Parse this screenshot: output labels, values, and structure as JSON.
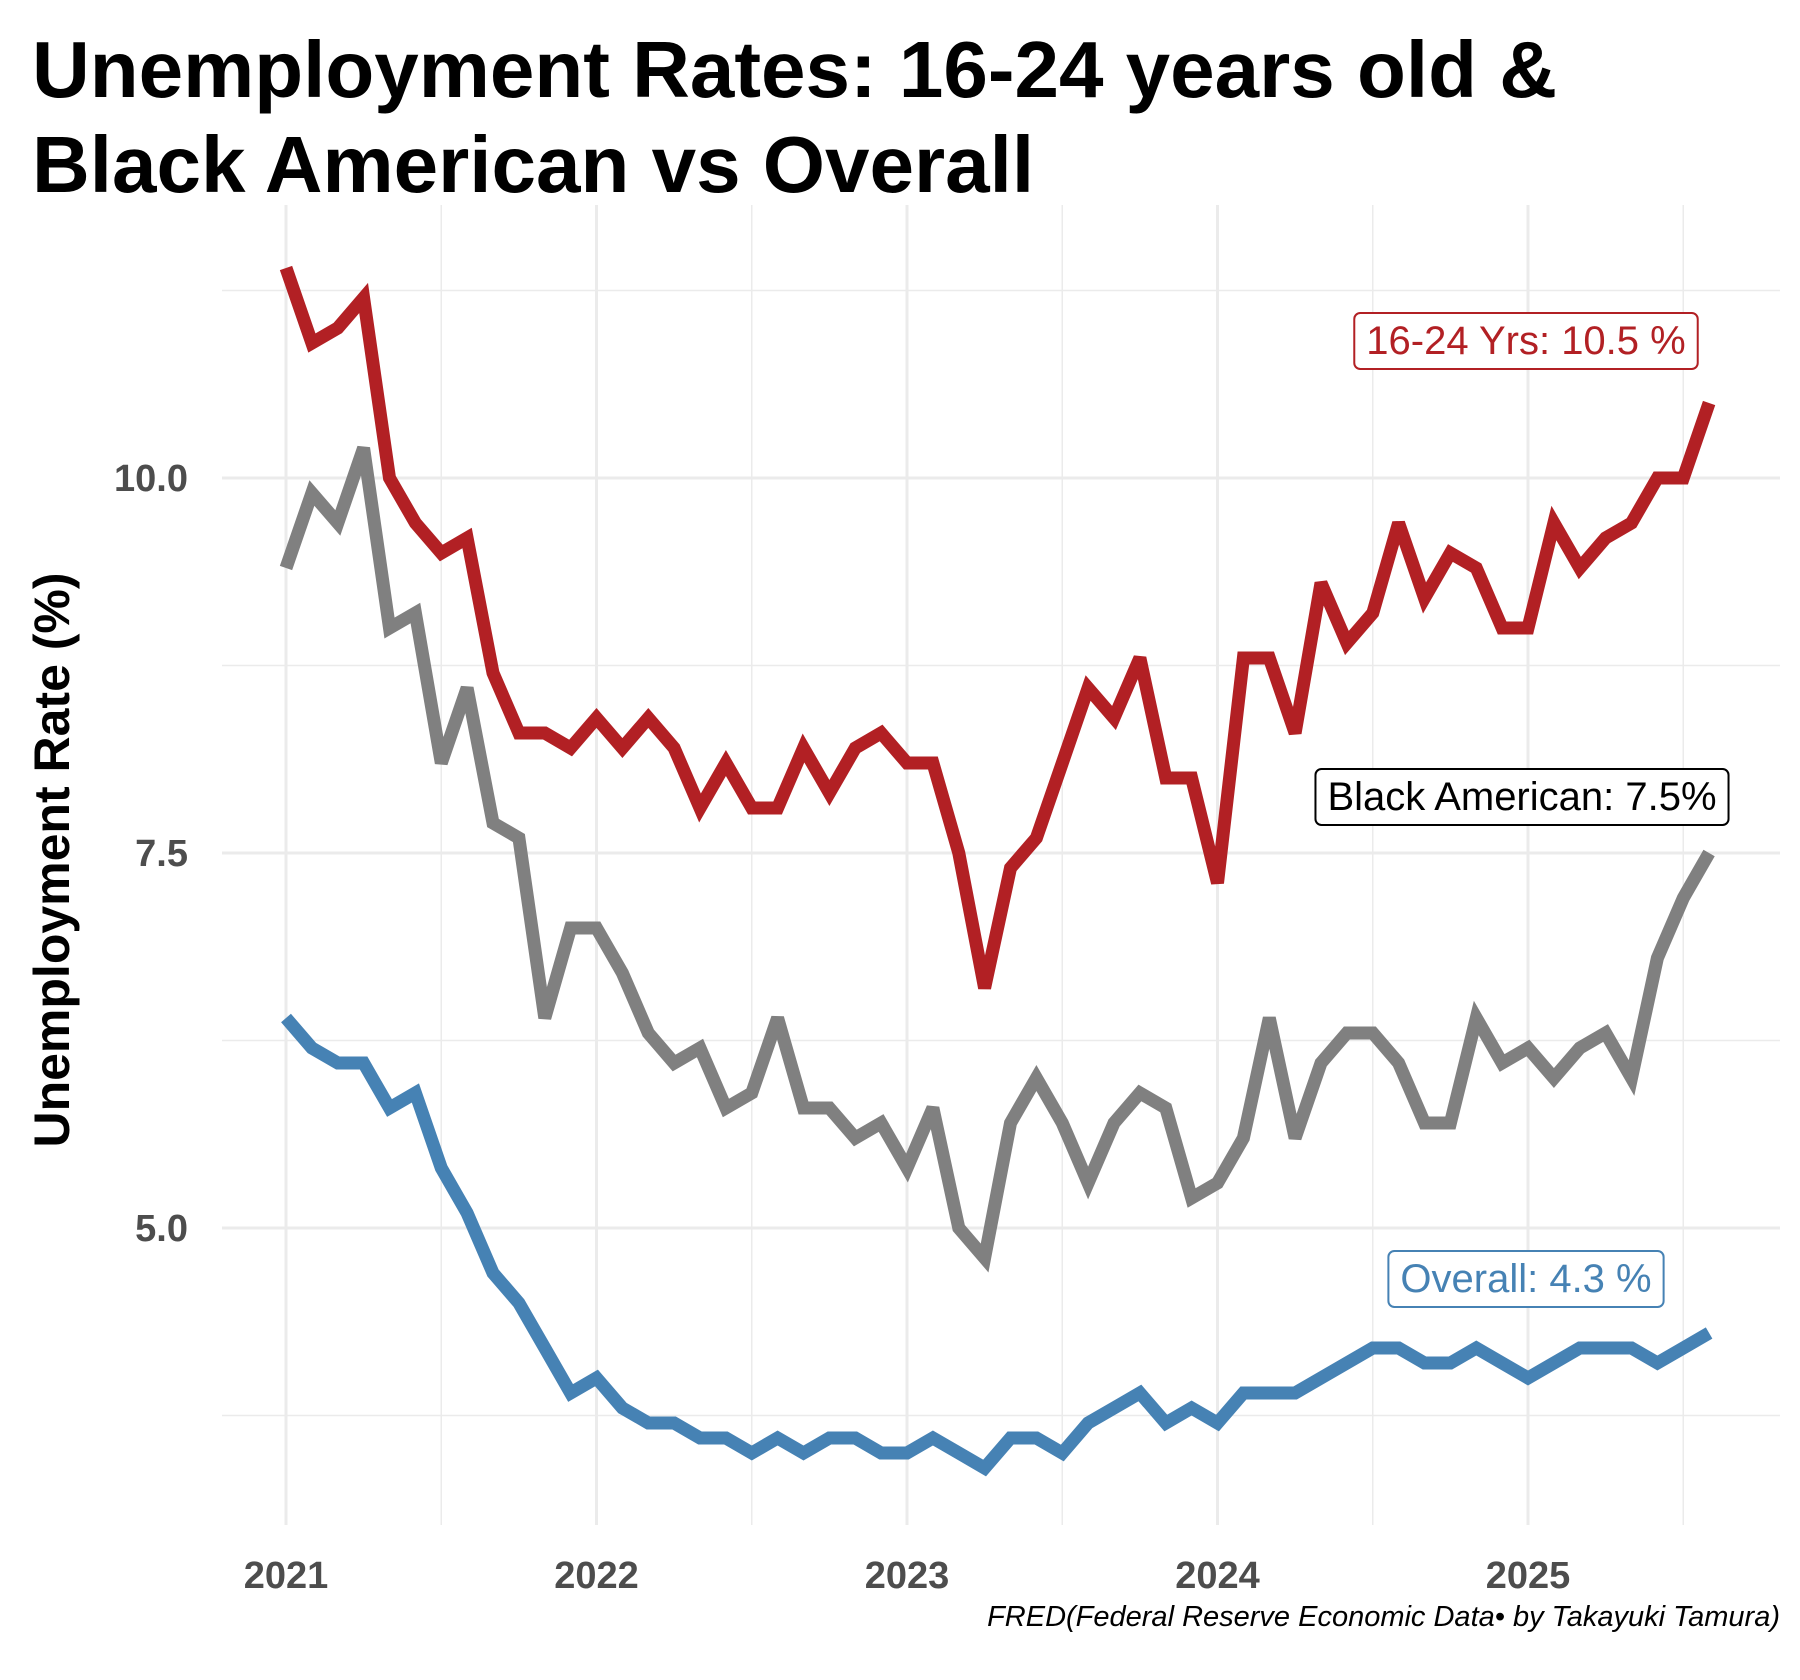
{
  "title_lines": [
    "Unemployment Rates: 16-24 years old &",
    "Black American vs Overall"
  ],
  "caption": "FRED(Federal Reserve Economic Data• by Takayuki Tamura)",
  "colors": {
    "youth": "#b22024",
    "black": "#808080",
    "overall": "#4682b4",
    "grid": "#ebebeb",
    "tick_text": "#4d4d4d"
  },
  "chart_data": {
    "type": "line",
    "title": "Unemployment Rates: 16-24 years old & Black American vs Overall",
    "xlabel": "",
    "ylabel": "Unemployment Rate (%)",
    "x_ticks": [
      "2021",
      "2022",
      "2023",
      "2024",
      "2025"
    ],
    "y_ticks": [
      "5.0",
      "7.5",
      "10.0"
    ],
    "y_tick_values": [
      5.0,
      7.5,
      10.0
    ],
    "ylim": [
      3.0,
      11.8
    ],
    "xlim": [
      "2020-12",
      "2025-10"
    ],
    "grid": true,
    "legend": "none (direct labels at line ends)",
    "x": [
      "2021-01",
      "2021-02",
      "2021-03",
      "2021-04",
      "2021-05",
      "2021-06",
      "2021-07",
      "2021-08",
      "2021-09",
      "2021-10",
      "2021-11",
      "2021-12",
      "2022-01",
      "2022-02",
      "2022-03",
      "2022-04",
      "2022-05",
      "2022-06",
      "2022-07",
      "2022-08",
      "2022-09",
      "2022-10",
      "2022-11",
      "2022-12",
      "2023-01",
      "2023-02",
      "2023-03",
      "2023-04",
      "2023-05",
      "2023-06",
      "2023-07",
      "2023-08",
      "2023-09",
      "2023-10",
      "2023-11",
      "2023-12",
      "2024-01",
      "2024-02",
      "2024-03",
      "2024-04",
      "2024-05",
      "2024-06",
      "2024-07",
      "2024-08",
      "2024-09",
      "2024-10",
      "2024-11",
      "2024-12",
      "2025-01",
      "2025-02",
      "2025-03",
      "2025-04",
      "2025-05",
      "2025-06",
      "2025-07",
      "2025-08"
    ],
    "series": [
      {
        "name": "16-24 Yrs",
        "color": "#b22024",
        "label": "16-24 Yrs: 10.5 %",
        "values": [
          11.4,
          10.9,
          11.0,
          11.2,
          10.0,
          9.7,
          9.5,
          9.6,
          8.7,
          8.3,
          8.3,
          8.2,
          8.4,
          8.2,
          8.4,
          8.2,
          7.8,
          8.1,
          7.8,
          7.8,
          8.2,
          7.9,
          8.2,
          8.3,
          8.1,
          8.1,
          7.5,
          6.6,
          7.4,
          7.6,
          8.1,
          8.6,
          8.4,
          8.8,
          8.0,
          8.0,
          7.3,
          8.8,
          8.8,
          8.3,
          9.3,
          8.9,
          9.1,
          9.7,
          9.2,
          9.5,
          9.4,
          9.0,
          9.0,
          9.7,
          9.4,
          9.6,
          9.7,
          10.0,
          10.0,
          10.5
        ]
      },
      {
        "name": "Black American",
        "color": "#808080",
        "label": "Black American: 7.5%",
        "values": [
          9.4,
          9.9,
          9.7,
          10.2,
          9.0,
          9.1,
          8.1,
          8.6,
          7.7,
          7.6,
          6.4,
          7.0,
          7.0,
          6.7,
          6.3,
          6.1,
          6.2,
          5.8,
          5.9,
          6.4,
          5.8,
          5.8,
          5.6,
          5.7,
          5.4,
          5.8,
          5.0,
          4.8,
          5.7,
          6.0,
          5.7,
          5.3,
          5.7,
          5.9,
          5.8,
          5.2,
          5.3,
          5.6,
          6.4,
          5.6,
          6.1,
          6.3,
          6.3,
          6.1,
          5.7,
          5.7,
          6.4,
          6.1,
          6.2,
          6.0,
          6.2,
          6.3,
          6.0,
          6.8,
          7.2,
          7.5
        ]
      },
      {
        "name": "Overall",
        "color": "#4682b4",
        "label": "Overall: 4.3 %",
        "values": [
          6.4,
          6.2,
          6.1,
          6.1,
          5.8,
          5.9,
          5.4,
          5.1,
          4.7,
          4.5,
          4.2,
          3.9,
          4.0,
          3.8,
          3.7,
          3.7,
          3.6,
          3.6,
          3.5,
          3.6,
          3.5,
          3.6,
          3.6,
          3.5,
          3.5,
          3.6,
          3.5,
          3.4,
          3.6,
          3.6,
          3.5,
          3.7,
          3.8,
          3.9,
          3.7,
          3.8,
          3.7,
          3.9,
          3.9,
          3.9,
          4.0,
          4.1,
          4.2,
          4.2,
          4.1,
          4.1,
          4.2,
          4.1,
          4.0,
          4.1,
          4.2,
          4.2,
          4.2,
          4.1,
          4.2,
          4.3
        ]
      }
    ]
  }
}
